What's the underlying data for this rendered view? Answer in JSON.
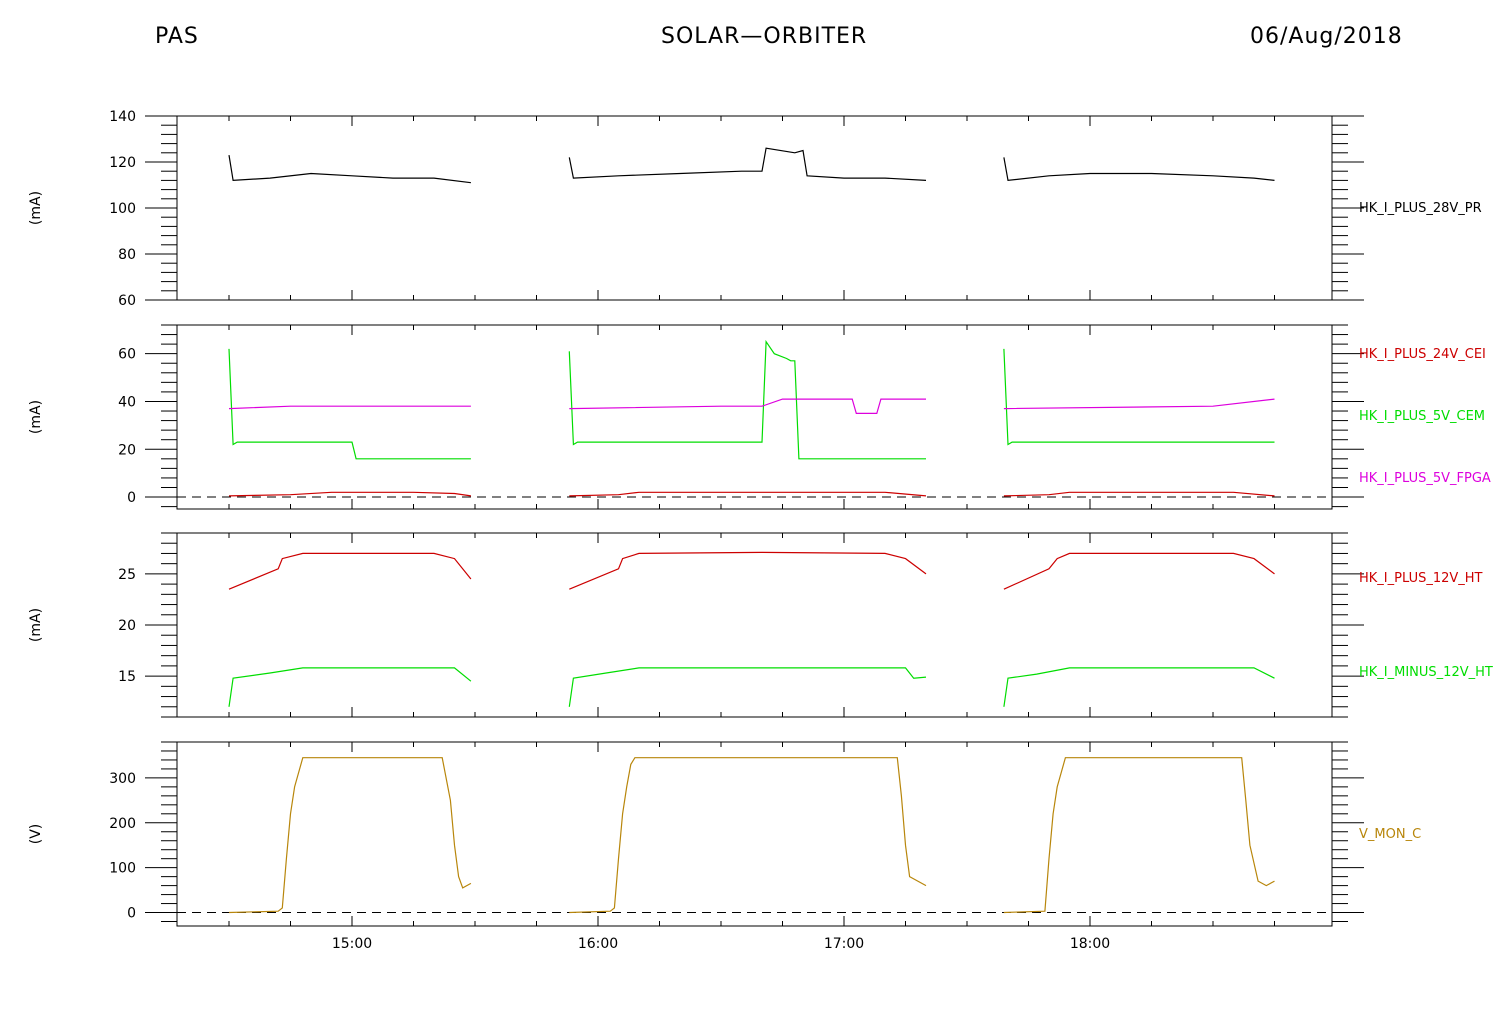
{
  "header": {
    "left": "PAS",
    "center": "SOLAR—ORBITER",
    "right": "06/Aug/2018"
  },
  "colors": {
    "black": "#000000",
    "red": "#cc0000",
    "green": "#00dd00",
    "magenta": "#dd00dd",
    "gold": "#b8860b"
  },
  "chart_data": [
    {
      "type": "line",
      "x_unit": "time (UT)",
      "ylabel": "(mA)",
      "ylim": [
        60,
        140
      ],
      "yticks": [
        60,
        80,
        100,
        120,
        140
      ],
      "ytick_labels": [
        "60",
        "80",
        "100",
        "120",
        "140"
      ],
      "series": [
        {
          "name": "HK_I_PLUS_28V_PR",
          "color": "#000000",
          "segments": [
            [
              [
                "14:30",
                123
              ],
              [
                "14:31",
                112
              ],
              [
                "14:40",
                113
              ],
              [
                "14:50",
                115
              ],
              [
                "15:00",
                114
              ],
              [
                "15:10",
                113
              ],
              [
                "15:20",
                113
              ],
              [
                "15:29",
                111
              ]
            ],
            [
              [
                "15:53",
                122
              ],
              [
                "15:54",
                113
              ],
              [
                "16:05",
                114
              ],
              [
                "16:20",
                115
              ],
              [
                "16:35",
                116
              ],
              [
                "16:40",
                116
              ],
              [
                "16:41",
                126
              ],
              [
                "16:48",
                124
              ],
              [
                "16:50",
                125
              ],
              [
                "16:51",
                114
              ],
              [
                "17:00",
                113
              ],
              [
                "17:10",
                113
              ],
              [
                "17:20",
                112
              ]
            ],
            [
              [
                "17:39",
                122
              ],
              [
                "17:40",
                112
              ],
              [
                "17:50",
                114
              ],
              [
                "18:00",
                115
              ],
              [
                "18:15",
                115
              ],
              [
                "18:30",
                114
              ],
              [
                "18:40",
                113
              ],
              [
                "18:45",
                112
              ]
            ]
          ]
        }
      ]
    },
    {
      "type": "line",
      "x_unit": "time (UT)",
      "ylabel": "(mA)",
      "ylim": [
        -5,
        72
      ],
      "yticks": [
        0,
        20,
        40,
        60
      ],
      "ytick_labels": [
        "0",
        "20",
        "40",
        "60"
      ],
      "zero_line": true,
      "series": [
        {
          "name": "HK_I_PLUS_24V_CEI",
          "color": "#cc0000",
          "segments": [
            [
              [
                "14:30",
                0.5
              ],
              [
                "14:45",
                1
              ],
              [
                "14:55",
                2
              ],
              [
                "15:15",
                2
              ],
              [
                "15:25",
                1.5
              ],
              [
                "15:29",
                0.5
              ]
            ],
            [
              [
                "15:53",
                0.5
              ],
              [
                "16:05",
                1
              ],
              [
                "16:10",
                2
              ],
              [
                "17:10",
                2
              ],
              [
                "17:20",
                0.5
              ]
            ],
            [
              [
                "17:39",
                0.5
              ],
              [
                "17:50",
                1
              ],
              [
                "17:55",
                2
              ],
              [
                "18:35",
                2
              ],
              [
                "18:45",
                0.5
              ]
            ]
          ]
        },
        {
          "name": "HK_I_PLUS_5V_CEM",
          "color": "#00dd00",
          "segments": [
            [
              [
                "14:30",
                62
              ],
              [
                "14:31",
                22
              ],
              [
                "14:32",
                23
              ],
              [
                "15:00",
                23
              ],
              [
                "15:00",
                23
              ],
              [
                "15:01",
                16
              ],
              [
                "15:29",
                16
              ]
            ],
            [
              [
                "15:53",
                61
              ],
              [
                "15:54",
                22
              ],
              [
                "15:55",
                23
              ],
              [
                "16:40",
                23
              ],
              [
                "16:41",
                65
              ],
              [
                "16:43",
                60
              ],
              [
                "16:46",
                58
              ],
              [
                "16:47",
                57
              ],
              [
                "16:48",
                57
              ],
              [
                "16:49",
                16
              ],
              [
                "17:20",
                16
              ]
            ],
            [
              [
                "17:39",
                62
              ],
              [
                "17:40",
                22
              ],
              [
                "17:41",
                23
              ],
              [
                "18:45",
                23
              ]
            ]
          ]
        },
        {
          "name": "HK_I_PLUS_5V_FPGA",
          "color": "#dd00dd",
          "segments": [
            [
              [
                "14:30",
                37
              ],
              [
                "14:45",
                38
              ],
              [
                "15:05",
                38
              ],
              [
                "15:10",
                38
              ],
              [
                "15:29",
                38
              ]
            ],
            [
              [
                "15:53",
                37
              ],
              [
                "16:30",
                38
              ],
              [
                "16:40",
                38
              ],
              [
                "16:45",
                41
              ],
              [
                "16:50",
                41
              ],
              [
                "17:02",
                41
              ],
              [
                "17:03",
                35
              ],
              [
                "17:08",
                35
              ],
              [
                "17:09",
                41
              ],
              [
                "17:20",
                41
              ]
            ],
            [
              [
                "17:39",
                37
              ],
              [
                "18:30",
                38
              ],
              [
                "18:45",
                41
              ]
            ]
          ]
        }
      ]
    },
    {
      "type": "line",
      "x_unit": "time (UT)",
      "ylabel": "(mA)",
      "ylim": [
        11,
        29
      ],
      "yticks": [
        15,
        20,
        25
      ],
      "ytick_labels": [
        "15",
        "20",
        "25"
      ],
      "series": [
        {
          "name": "HK_I_PLUS_12V_HT",
          "color": "#cc0000",
          "segments": [
            [
              [
                "14:30",
                23.5
              ],
              [
                "14:42",
                25.5
              ],
              [
                "14:43",
                26.5
              ],
              [
                "14:48",
                27
              ],
              [
                "15:20",
                27
              ],
              [
                "15:25",
                26.5
              ],
              [
                "15:29",
                24.5
              ]
            ],
            [
              [
                "15:53",
                23.5
              ],
              [
                "16:05",
                25.5
              ],
              [
                "16:06",
                26.5
              ],
              [
                "16:10",
                27
              ],
              [
                "16:40",
                27.1
              ],
              [
                "17:10",
                27
              ],
              [
                "17:15",
                26.5
              ],
              [
                "17:20",
                25
              ]
            ],
            [
              [
                "17:39",
                23.5
              ],
              [
                "17:50",
                25.5
              ],
              [
                "17:52",
                26.5
              ],
              [
                "17:55",
                27
              ],
              [
                "18:35",
                27
              ],
              [
                "18:40",
                26.5
              ],
              [
                "18:45",
                25
              ]
            ]
          ]
        },
        {
          "name": "HK_I_MINUS_12V_HT",
          "color": "#00dd00",
          "segments": [
            [
              [
                "14:30",
                12
              ],
              [
                "14:31",
                14.8
              ],
              [
                "14:40",
                15.3
              ],
              [
                "14:48",
                15.8
              ],
              [
                "15:25",
                15.8
              ],
              [
                "15:29",
                14.5
              ]
            ],
            [
              [
                "15:53",
                12
              ],
              [
                "15:54",
                14.8
              ],
              [
                "16:02",
                15.3
              ],
              [
                "16:10",
                15.8
              ],
              [
                "17:15",
                15.8
              ],
              [
                "17:17",
                14.8
              ],
              [
                "17:20",
                14.9
              ]
            ],
            [
              [
                "17:39",
                12
              ],
              [
                "17:40",
                14.8
              ],
              [
                "17:47",
                15.2
              ],
              [
                "17:55",
                15.8
              ],
              [
                "18:40",
                15.8
              ],
              [
                "18:45",
                14.8
              ]
            ]
          ]
        }
      ]
    },
    {
      "type": "line",
      "x_unit": "time (UT)",
      "ylabel": "(V)",
      "ylim": [
        -30,
        380
      ],
      "yticks": [
        0,
        100,
        200,
        300
      ],
      "ytick_labels": [
        "0",
        "100",
        "200",
        "300"
      ],
      "zero_line": true,
      "xticks": [
        "15:00",
        "16:00",
        "17:00",
        "18:00"
      ],
      "xtick_labels": [
        "15:00",
        "16:00",
        "17:00",
        "18:00"
      ],
      "series": [
        {
          "name": "V_MON_C",
          "color": "#b8860b",
          "segments": [
            [
              [
                "14:30",
                0
              ],
              [
                "14:42",
                3
              ],
              [
                "14:43",
                10
              ],
              [
                "14:44",
                120
              ],
              [
                "14:45",
                220
              ],
              [
                "14:46",
                280
              ],
              [
                "14:48",
                345
              ],
              [
                "15:22",
                345
              ],
              [
                "15:24",
                250
              ],
              [
                "15:25",
                150
              ],
              [
                "15:26",
                80
              ],
              [
                "15:27",
                55
              ],
              [
                "15:29",
                65
              ]
            ],
            [
              [
                "15:53",
                0
              ],
              [
                "16:03",
                3
              ],
              [
                "16:04",
                10
              ],
              [
                "16:05",
                120
              ],
              [
                "16:06",
                220
              ],
              [
                "16:07",
                280
              ],
              [
                "16:08",
                330
              ],
              [
                "16:09",
                345
              ],
              [
                "17:13",
                345
              ],
              [
                "17:14",
                260
              ],
              [
                "17:15",
                150
              ],
              [
                "17:16",
                80
              ],
              [
                "17:20",
                60
              ]
            ],
            [
              [
                "17:39",
                0
              ],
              [
                "17:49",
                3
              ],
              [
                "17:50",
                120
              ],
              [
                "17:51",
                220
              ],
              [
                "17:52",
                280
              ],
              [
                "17:54",
                345
              ],
              [
                "18:37",
                345
              ],
              [
                "18:38",
                250
              ],
              [
                "18:39",
                150
              ],
              [
                "18:41",
                70
              ],
              [
                "18:43",
                60
              ],
              [
                "18:45",
                70
              ]
            ]
          ]
        }
      ]
    }
  ]
}
